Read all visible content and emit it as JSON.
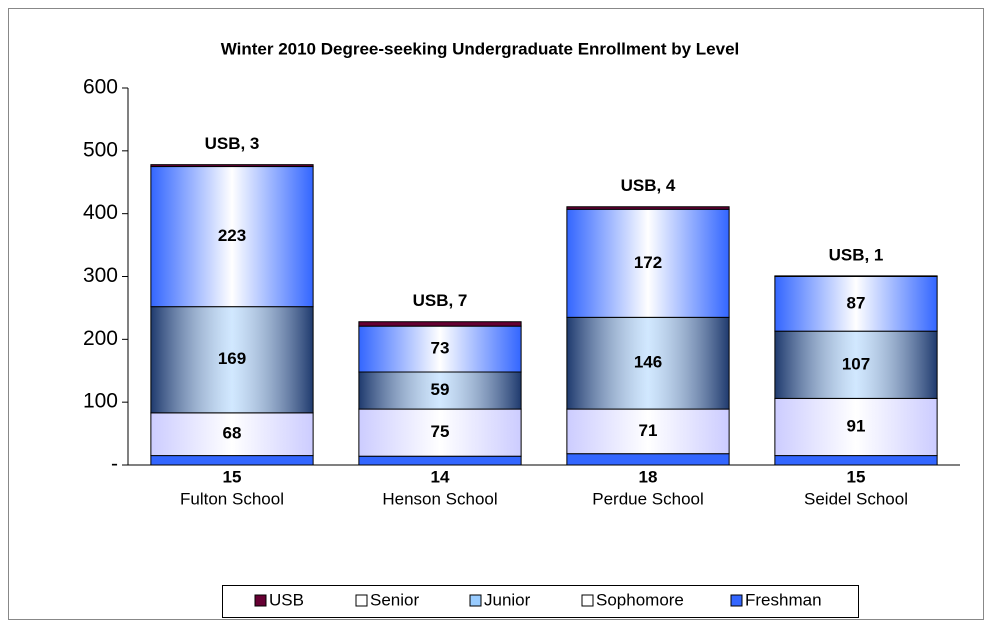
{
  "chart_data": {
    "type": "stacked_bar",
    "title": "Winter 2010 Degree-seeking Undergraduate Enrollment by Level",
    "categories": [
      "Fulton School",
      "Henson School",
      "Perdue School",
      "Seidel School"
    ],
    "series": [
      {
        "name": "Freshman",
        "color": "#3366ff",
        "values": [
          15,
          14,
          18,
          15
        ]
      },
      {
        "name": "Sophomore",
        "color": "#ccccff",
        "values": [
          68,
          75,
          71,
          91
        ]
      },
      {
        "name": "Junior",
        "color": "#1f3a6e",
        "values": [
          169,
          59,
          146,
          107
        ]
      },
      {
        "name": "Senior",
        "color": "#3366ff",
        "values": [
          223,
          73,
          172,
          87
        ]
      },
      {
        "name": "USB",
        "color": "#660033",
        "values": [
          3,
          7,
          4,
          1
        ],
        "value_labels": [
          "USB,  3",
          "USB,  7",
          "USB,  4",
          "USB,  1"
        ]
      }
    ],
    "ylim": [
      0,
      600
    ],
    "yticks": [
      {
        "value": 0,
        "label": "-"
      },
      100,
      200,
      300,
      400,
      500,
      600
    ]
  }
}
